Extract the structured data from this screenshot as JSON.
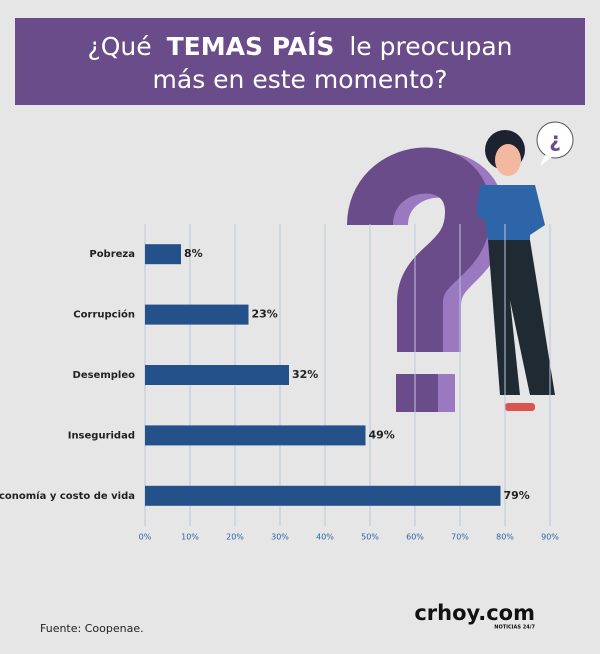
{
  "chart_data": {
    "type": "bar",
    "title": {
      "line1": [
        "¿Qué",
        "TEMAS PAÍS",
        "le preocupan"
      ],
      "line2": "más en este momento?"
    },
    "categories": [
      "Pobreza",
      "Corrupción",
      "Desempleo",
      "Inseguridad",
      "Economía y costo de vida"
    ],
    "values": [
      8,
      23,
      32,
      49,
      79
    ],
    "value_labels": [
      "8%",
      "23%",
      "32%",
      "49%",
      "79%"
    ],
    "color": "#24518a",
    "xlim": [
      0,
      90
    ],
    "xticks": [
      {
        "value": 0,
        "label": "0%"
      },
      {
        "value": 10,
        "label": "10%"
      },
      {
        "value": 20,
        "label": "20%"
      },
      {
        "value": 30,
        "label": "30%"
      },
      {
        "value": 40,
        "label": "40%"
      },
      {
        "value": 50,
        "label": "50%"
      },
      {
        "value": 60,
        "label": "60%"
      },
      {
        "value": 70,
        "label": "70%"
      },
      {
        "value": 80,
        "label": "80%"
      },
      {
        "value": 90,
        "label": "90%"
      }
    ],
    "grid": true,
    "source": "Fuente: Coopenae.",
    "logo": {
      "name": "crhoy.com",
      "tagline": "NOTICIAS 24/7"
    }
  }
}
